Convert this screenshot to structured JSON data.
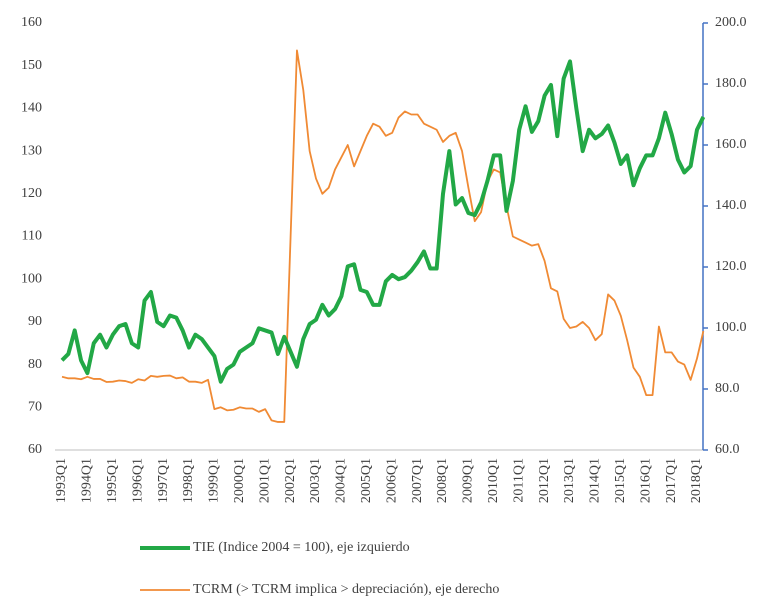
{
  "chart_data": {
    "type": "line",
    "categories": [
      "1993Q1",
      null,
      null,
      null,
      "1994Q1",
      null,
      null,
      null,
      "1995Q1",
      null,
      null,
      null,
      "1996Q1",
      null,
      null,
      null,
      "1997Q1",
      null,
      null,
      null,
      "1998Q1",
      null,
      null,
      null,
      "1999Q1",
      null,
      null,
      null,
      "2000Q1",
      null,
      null,
      null,
      "2001Q1",
      null,
      null,
      null,
      "2002Q1",
      null,
      null,
      null,
      "2003Q1",
      null,
      null,
      null,
      "2004Q1",
      null,
      null,
      null,
      "2005Q1",
      null,
      null,
      null,
      "2006Q1",
      null,
      null,
      null,
      "2007Q1",
      null,
      null,
      null,
      "2008Q1",
      null,
      null,
      null,
      "2009Q1",
      null,
      null,
      null,
      "2010Q1",
      null,
      null,
      null,
      "2011Q1",
      null,
      null,
      null,
      "2012Q1",
      null,
      null,
      null,
      "2013Q1",
      null,
      null,
      null,
      "2014Q1",
      null,
      null,
      null,
      "2015Q1",
      null,
      null,
      null,
      "2016Q1",
      null,
      null,
      null,
      "2017Q1",
      null,
      null,
      null,
      "2018Q1",
      null
    ],
    "series": [
      {
        "name": "TIE (Indice 2004 = 100), eje izquierdo",
        "color": "#22a846",
        "axis": "y",
        "values": [
          81,
          82.5,
          88,
          81,
          78,
          85,
          87,
          84,
          87,
          89,
          89.5,
          85,
          84,
          95,
          97,
          90,
          89,
          91.5,
          91,
          88,
          84,
          87,
          86,
          84,
          82,
          76,
          79,
          80,
          83,
          84,
          85,
          88.5,
          88,
          87.5,
          82.5,
          86.5,
          83,
          79.5,
          86,
          89.5,
          90.5,
          94,
          91.5,
          93,
          96,
          103,
          103.5,
          97.5,
          97,
          94,
          94,
          99.5,
          101,
          100,
          100.5,
          102,
          104,
          106.5,
          102.5,
          102.5,
          120,
          130,
          117.5,
          119,
          115.5,
          115,
          118,
          123,
          129,
          129,
          116,
          123,
          135,
          140.5,
          134.5,
          137,
          143,
          145.5,
          133.5,
          147,
          151,
          140,
          130,
          135,
          133,
          134,
          136,
          132,
          127,
          129,
          122,
          126,
          129,
          129,
          133,
          139,
          134,
          128,
          125,
          126.5,
          135,
          138
        ]
      },
      {
        "name": "TCRM (> TCRM implica > depreciación), eje derecho",
        "color": "#f08a34",
        "axis": "y2",
        "values": [
          84,
          83.5,
          83.5,
          83.2,
          84,
          83.3,
          83.3,
          82.3,
          82.4,
          82.8,
          82.6,
          82,
          83.2,
          82.8,
          84.3,
          84,
          84.3,
          84.4,
          83.5,
          83.8,
          82.4,
          82.4,
          82,
          83,
          73.4,
          74,
          73,
          73.2,
          74,
          73.6,
          73.6,
          72.5,
          73.4,
          69.7,
          69.2,
          69.2,
          130,
          191,
          178,
          158,
          149,
          144,
          146,
          152,
          156,
          160,
          153,
          158,
          163,
          167,
          166,
          163,
          164,
          169,
          171,
          170,
          170,
          167,
          166,
          165,
          161,
          163,
          164,
          158,
          146,
          135,
          138,
          148,
          152,
          151,
          140,
          130,
          129,
          128,
          127,
          127.5,
          122,
          113,
          112,
          103,
          100,
          100.5,
          102,
          100,
          96,
          98,
          111,
          109,
          104,
          96,
          87,
          84,
          78,
          78,
          100.5,
          92,
          92,
          89,
          88,
          83,
          90,
          99
        ]
      }
    ],
    "ylim": [
      60,
      160
    ],
    "yticks": [
      60,
      70,
      80,
      90,
      100,
      110,
      120,
      130,
      140,
      150,
      160
    ],
    "y2lim": [
      60,
      200
    ],
    "y2ticks": [
      {
        "value": 60,
        "label": "60.0"
      },
      {
        "value": 80,
        "label": "80.0"
      },
      {
        "value": 100,
        "label": "100.0"
      },
      {
        "value": 120,
        "label": "120.0"
      },
      {
        "value": 140,
        "label": "140.0"
      },
      {
        "value": 160,
        "label": "160.0"
      },
      {
        "value": 180,
        "label": "180.0"
      },
      {
        "value": 200,
        "label": "200.0"
      }
    ],
    "y2color": "#4472c4",
    "legend": "bottom"
  }
}
